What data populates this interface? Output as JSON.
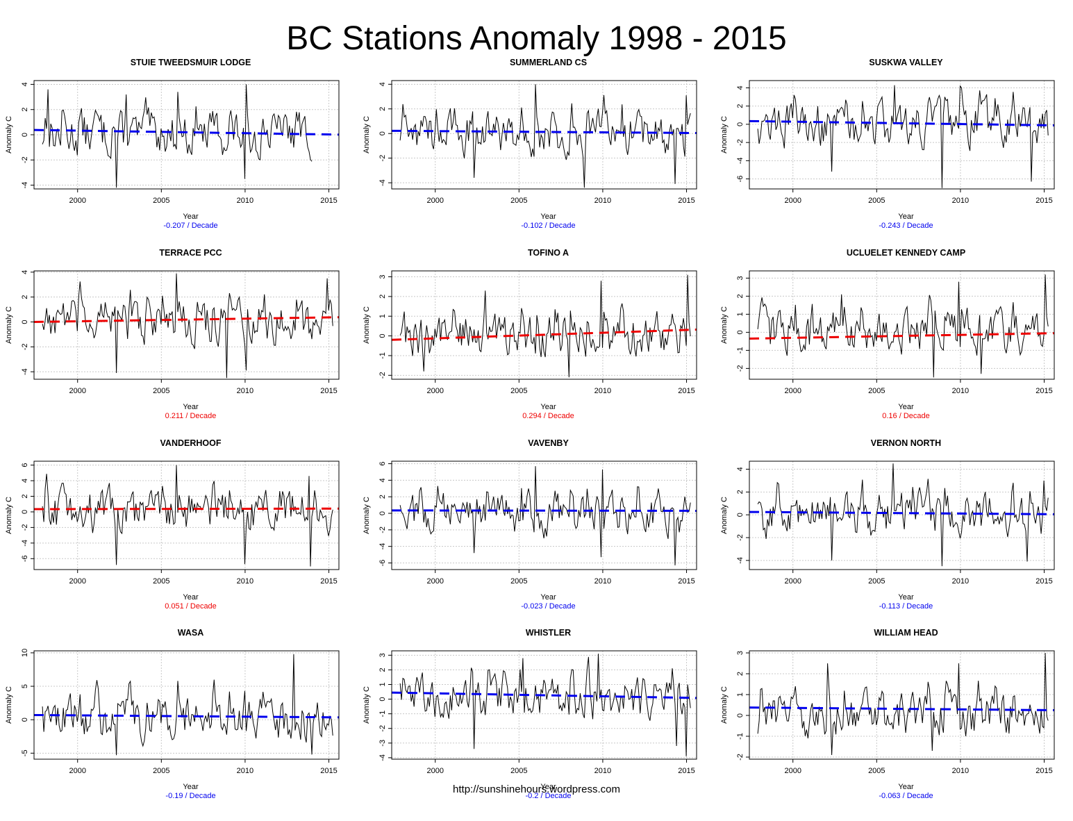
{
  "main_title": "BC Stations Anomaly 1998 - 2015",
  "footer_url": "http://sunshinehours.wordpress.com",
  "colors": {
    "data_line": "#000000",
    "trend_negative": "#0000ee",
    "trend_positive": "#ee0000",
    "grid": "#c8c8c8"
  },
  "axis_common": {
    "xlabel": "Year",
    "ylabel": "Anomaly C",
    "xlim": [
      1997.4,
      2015.6
    ],
    "xticks": [
      2000,
      2005,
      2010,
      2015
    ],
    "trend_unit": "/ Decade"
  },
  "chart_data": [
    {
      "type": "line",
      "title": "STUIE TWEEDSMUIR LODGE",
      "trend_label": "-0.207",
      "trend_color": "#0000ee",
      "ylim": [
        -4.3,
        4.3
      ],
      "yticks": [
        -4,
        -2,
        0,
        2,
        4
      ],
      "data_end": 2014.0,
      "trend": [
        0.38,
        0.01
      ],
      "peaks": [
        [
          2002.3,
          -4.2
        ],
        [
          2010.1,
          4.0
        ],
        [
          2002.9,
          3.2
        ],
        [
          2006.0,
          3.4
        ],
        [
          2010.0,
          -3.5
        ],
        [
          1998.2,
          3.6
        ]
      ]
    },
    {
      "type": "line",
      "title": "SUMMERLAND CS",
      "trend_label": "-0.102",
      "trend_color": "#0000ee",
      "ylim": [
        -4.5,
        4.3
      ],
      "yticks": [
        -4,
        -2,
        0,
        2,
        4
      ],
      "data_end": 2015.3,
      "trend": [
        0.22,
        0.04
      ],
      "peaks": [
        [
          2006.0,
          4.0
        ],
        [
          2008.9,
          -4.4
        ],
        [
          2014.3,
          -4.1
        ],
        [
          2002.3,
          -3.6
        ],
        [
          2015.0,
          3.1
        ]
      ]
    },
    {
      "type": "line",
      "title": "SUSKWA VALLEY",
      "trend_label": "-0.243",
      "trend_color": "#0000ee",
      "ylim": [
        -7.1,
        4.8
      ],
      "yticks": [
        -6,
        -4,
        -2,
        0,
        2,
        4
      ],
      "data_end": 2015.3,
      "trend": [
        0.35,
        -0.12
      ],
      "peaks": [
        [
          2008.9,
          -7.0
        ],
        [
          2014.2,
          -6.3
        ],
        [
          2006.1,
          4.3
        ],
        [
          2010.0,
          4.2
        ],
        [
          2002.3,
          -5.2
        ]
      ]
    },
    {
      "type": "line",
      "title": "TERRACE PCC",
      "trend_label": "0.211",
      "trend_color": "#ee0000",
      "ylim": [
        -4.6,
        4.1
      ],
      "yticks": [
        -4,
        -2,
        0,
        2,
        4
      ],
      "data_end": 2015.3,
      "trend": [
        0.0,
        0.38
      ],
      "peaks": [
        [
          2008.9,
          -4.5
        ],
        [
          2005.9,
          3.9
        ],
        [
          2002.3,
          -4.1
        ],
        [
          2010.1,
          -3.9
        ],
        [
          2014.9,
          3.5
        ]
      ]
    },
    {
      "type": "line",
      "title": "TOFINO A",
      "trend_label": "0.294",
      "trend_color": "#ee0000",
      "ylim": [
        -2.2,
        3.3
      ],
      "yticks": [
        -2,
        -1,
        0,
        1,
        2,
        3
      ],
      "data_end": 2015.3,
      "trend": [
        -0.2,
        0.32
      ],
      "peaks": [
        [
          2015.1,
          3.1
        ],
        [
          2009.9,
          2.8
        ],
        [
          2008.0,
          -2.1
        ],
        [
          2003.0,
          2.3
        ],
        [
          1999.3,
          -1.8
        ]
      ]
    },
    {
      "type": "line",
      "title": "UCLUELET KENNEDY CAMP",
      "trend_label": "0.16",
      "trend_color": "#ee0000",
      "ylim": [
        -2.6,
        3.4
      ],
      "yticks": [
        -2,
        -1,
        0,
        1,
        2,
        3
      ],
      "data_end": 2015.3,
      "trend": [
        -0.35,
        -0.05
      ],
      "peaks": [
        [
          2015.1,
          3.2
        ],
        [
          2009.9,
          2.8
        ],
        [
          2008.4,
          -2.5
        ],
        [
          2002.9,
          2.1
        ],
        [
          2011.2,
          -2.3
        ]
      ]
    },
    {
      "type": "line",
      "title": "VANDERHOOF",
      "trend_label": "0.051",
      "trend_color": "#ee0000",
      "ylim": [
        -7.4,
        6.5
      ],
      "yticks": [
        -6,
        -4,
        -2,
        0,
        2,
        4,
        6
      ],
      "data_end": 2015.3,
      "trend": [
        0.35,
        0.42
      ],
      "peaks": [
        [
          2002.3,
          -6.8
        ],
        [
          2005.9,
          6.0
        ],
        [
          2010.0,
          -6.7
        ],
        [
          2013.9,
          -7.0
        ],
        [
          2013.8,
          4.6
        ]
      ]
    },
    {
      "type": "line",
      "title": "VAVENBY",
      "trend_label": "-0.023",
      "trend_color": "#0000ee",
      "ylim": [
        -6.8,
        6.3
      ],
      "yticks": [
        -6,
        -4,
        -2,
        0,
        2,
        4,
        6
      ],
      "data_end": 2015.3,
      "trend": [
        0.35,
        0.3
      ],
      "peaks": [
        [
          2014.3,
          -6.3
        ],
        [
          2006.0,
          5.7
        ],
        [
          2010.0,
          5.3
        ],
        [
          2009.9,
          -5.3
        ],
        [
          2002.3,
          -4.8
        ]
      ]
    },
    {
      "type": "line",
      "title": "VERNON NORTH",
      "trend_label": "-0.113",
      "trend_color": "#0000ee",
      "ylim": [
        -4.8,
        4.7
      ],
      "yticks": [
        -4,
        -2,
        0,
        2,
        4
      ],
      "data_end": 2015.3,
      "trend": [
        0.25,
        0.05
      ],
      "peaks": [
        [
          2006.0,
          4.5
        ],
        [
          2008.9,
          -4.5
        ],
        [
          2014.0,
          -4.1
        ],
        [
          2002.3,
          -4.0
        ],
        [
          2015.0,
          3.0
        ]
      ]
    },
    {
      "type": "line",
      "title": "WASA",
      "trend_label": "-0.19",
      "trend_color": "#0000ee",
      "ylim": [
        -5.9,
        10.3
      ],
      "yticks": [
        -5,
        0,
        5,
        10
      ],
      "data_end": 2015.3,
      "trend": [
        0.7,
        0.35
      ],
      "peaks": [
        [
          2012.9,
          9.8
        ],
        [
          2002.3,
          -5.3
        ],
        [
          2014.0,
          -5.2
        ],
        [
          2006.0,
          5.8
        ],
        [
          2010.0,
          4.3
        ]
      ]
    },
    {
      "type": "line",
      "title": "WHISTLER",
      "trend_label": "-0.2",
      "trend_color": "#0000ee",
      "ylim": [
        -4.1,
        3.3
      ],
      "yticks": [
        -4,
        -3,
        -2,
        -1,
        0,
        1,
        2,
        3
      ],
      "data_end": 2015.3,
      "trend": [
        0.45,
        0.08
      ],
      "peaks": [
        [
          2015.0,
          -3.9
        ],
        [
          2014.4,
          -3.2
        ],
        [
          2002.3,
          -3.4
        ],
        [
          2009.7,
          3.1
        ],
        [
          2005.2,
          2.8
        ]
      ]
    },
    {
      "type": "line",
      "title": "WILLIAM HEAD",
      "trend_label": "-0.063",
      "trend_color": "#0000ee",
      "ylim": [
        -2.1,
        3.1
      ],
      "yticks": [
        -2,
        -1,
        0,
        1,
        2,
        3
      ],
      "data_end": 2015.3,
      "trend": [
        0.38,
        0.25
      ],
      "peaks": [
        [
          2015.1,
          3.0
        ],
        [
          2002.3,
          -1.9
        ],
        [
          2009.9,
          2.5
        ],
        [
          2002.1,
          2.5
        ],
        [
          2008.3,
          -1.7
        ]
      ]
    }
  ]
}
